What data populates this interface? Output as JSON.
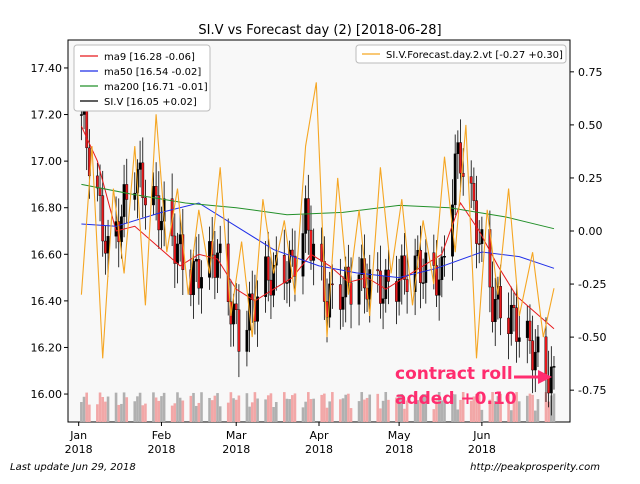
{
  "title": "SI.V vs Forecast day (2)  [2018-06-28]",
  "footer": {
    "left": "Last update Jun 29, 2018",
    "right": "http://peakprosperity.com"
  },
  "annotation": {
    "line1": "contract roll",
    "line2": "added +0.10",
    "color": "#ff2d6f"
  },
  "chart_data": {
    "type": "line",
    "title": "SI.V vs Forecast day (2)  [2018-06-28]",
    "x_range": [
      "2017-12-28",
      "2018-07-04"
    ],
    "x_ticks": [
      {
        "date": "2018-01-01",
        "label": "Jan",
        "year": "2018"
      },
      {
        "date": "2018-02-01",
        "label": "Feb",
        "year": "2018"
      },
      {
        "date": "2018-03-01",
        "label": "Mar",
        "year": "2018"
      },
      {
        "date": "2018-04-01",
        "label": "Apr",
        "year": "2018"
      },
      {
        "date": "2018-05-01",
        "label": "May",
        "year": "2018"
      },
      {
        "date": "2018-06-01",
        "label": "Jun",
        "year": "2018"
      }
    ],
    "y_left": {
      "range": [
        15.88,
        17.52
      ],
      "ticks": [
        "16.00",
        "16.20",
        "16.40",
        "16.60",
        "16.80",
        "17.00",
        "17.20",
        "17.40"
      ]
    },
    "y_right": {
      "range": [
        -0.9,
        0.9
      ],
      "ticks": [
        "-0.75",
        "-0.50",
        "-0.25",
        "0.00",
        "0.25",
        "0.50",
        "0.75"
      ]
    },
    "legend_left": [
      {
        "label": "ma9 [16.28 -0.06]",
        "color": "#e8191c"
      },
      {
        "label": "ma50 [16.54 -0.02]",
        "color": "#1f2ee8"
      },
      {
        "label": "ma200 [16.71 -0.01]",
        "color": "#23902a"
      },
      {
        "label": "SI.V [16.05 +0.02]",
        "color": "#000000"
      }
    ],
    "legend_right": [
      {
        "label": "SI.V.Forecast.day.2.vt [-0.27 +0.30]",
        "color": "#f5a623"
      }
    ],
    "colors": {
      "up": "#000000",
      "down": "#e8191c",
      "vol_up": "#b0b0b0",
      "vol_down": "#f2a7a7",
      "plot_bg": "#f8f8f8"
    },
    "series": [
      {
        "name": "SI.V",
        "kind": "close",
        "points": [
          [
            "2018-01-02",
            17.2
          ],
          [
            "2018-01-12",
            16.6
          ],
          [
            "2018-01-22",
            16.95
          ],
          [
            "2018-02-02",
            16.75
          ],
          [
            "2018-02-12",
            16.5
          ],
          [
            "2018-02-22",
            16.6
          ],
          [
            "2018-03-02",
            16.25
          ],
          [
            "2018-03-12",
            16.5
          ],
          [
            "2018-03-22",
            16.55
          ],
          [
            "2018-03-27",
            16.75
          ],
          [
            "2018-04-04",
            16.4
          ],
          [
            "2018-04-16",
            16.5
          ],
          [
            "2018-04-26",
            16.45
          ],
          [
            "2018-05-07",
            16.55
          ],
          [
            "2018-05-17",
            16.5
          ],
          [
            "2018-05-22",
            17.0
          ],
          [
            "2018-05-25",
            17.0
          ],
          [
            "2018-06-05",
            16.4
          ],
          [
            "2018-06-14",
            16.3
          ],
          [
            "2018-06-28",
            16.05
          ]
        ]
      },
      {
        "name": "ma9",
        "kind": "line",
        "points": [
          [
            "2018-01-02",
            17.15
          ],
          [
            "2018-01-08",
            17.0
          ],
          [
            "2018-01-15",
            16.7
          ],
          [
            "2018-01-22",
            16.72
          ],
          [
            "2018-02-01",
            16.62
          ],
          [
            "2018-02-08",
            16.55
          ],
          [
            "2018-02-15",
            16.6
          ],
          [
            "2018-02-22",
            16.58
          ],
          [
            "2018-03-01",
            16.45
          ],
          [
            "2018-03-08",
            16.4
          ],
          [
            "2018-03-15",
            16.45
          ],
          [
            "2018-03-22",
            16.5
          ],
          [
            "2018-03-29",
            16.6
          ],
          [
            "2018-04-05",
            16.55
          ],
          [
            "2018-04-12",
            16.48
          ],
          [
            "2018-04-19",
            16.5
          ],
          [
            "2018-04-26",
            16.45
          ],
          [
            "2018-05-03",
            16.5
          ],
          [
            "2018-05-10",
            16.55
          ],
          [
            "2018-05-17",
            16.6
          ],
          [
            "2018-05-24",
            16.82
          ],
          [
            "2018-05-31",
            16.7
          ],
          [
            "2018-06-07",
            16.55
          ],
          [
            "2018-06-14",
            16.42
          ],
          [
            "2018-06-21",
            16.35
          ],
          [
            "2018-06-28",
            16.28
          ]
        ]
      },
      {
        "name": "ma50",
        "kind": "line",
        "points": [
          [
            "2018-01-02",
            16.73
          ],
          [
            "2018-01-15",
            16.72
          ],
          [
            "2018-02-01",
            16.78
          ],
          [
            "2018-02-15",
            16.82
          ],
          [
            "2018-03-01",
            16.72
          ],
          [
            "2018-03-15",
            16.62
          ],
          [
            "2018-04-01",
            16.55
          ],
          [
            "2018-04-15",
            16.52
          ],
          [
            "2018-05-01",
            16.5
          ],
          [
            "2018-05-15",
            16.54
          ],
          [
            "2018-06-01",
            16.61
          ],
          [
            "2018-06-15",
            16.59
          ],
          [
            "2018-06-28",
            16.54
          ]
        ]
      },
      {
        "name": "ma200",
        "kind": "line",
        "points": [
          [
            "2018-01-02",
            16.9
          ],
          [
            "2018-01-20",
            16.86
          ],
          [
            "2018-02-10",
            16.82
          ],
          [
            "2018-03-01",
            16.8
          ],
          [
            "2018-03-20",
            16.77
          ],
          [
            "2018-04-10",
            16.78
          ],
          [
            "2018-05-01",
            16.81
          ],
          [
            "2018-05-20",
            16.8
          ],
          [
            "2018-06-10",
            16.76
          ],
          [
            "2018-06-28",
            16.71
          ]
        ]
      },
      {
        "name": "SI.V.Forecast.day.2.vt",
        "kind": "forecast",
        "points": [
          [
            "2018-01-02",
            -0.3
          ],
          [
            "2018-01-06",
            0.4
          ],
          [
            "2018-01-10",
            -0.6
          ],
          [
            "2018-01-14",
            0.2
          ],
          [
            "2018-01-18",
            -0.2
          ],
          [
            "2018-01-22",
            0.4
          ],
          [
            "2018-01-26",
            -0.35
          ],
          [
            "2018-01-30",
            0.55
          ],
          [
            "2018-02-03",
            -0.1
          ],
          [
            "2018-02-07",
            0.2
          ],
          [
            "2018-02-11",
            -0.3
          ],
          [
            "2018-02-15",
            0.1
          ],
          [
            "2018-02-19",
            -0.2
          ],
          [
            "2018-02-23",
            0.3
          ],
          [
            "2018-02-27",
            -0.4
          ],
          [
            "2018-03-03",
            -0.05
          ],
          [
            "2018-03-07",
            -0.5
          ],
          [
            "2018-03-11",
            0.15
          ],
          [
            "2018-03-15",
            -0.2
          ],
          [
            "2018-03-19",
            0.05
          ],
          [
            "2018-03-23",
            -0.3
          ],
          [
            "2018-03-27",
            0.4
          ],
          [
            "2018-03-31",
            0.7
          ],
          [
            "2018-04-04",
            -0.5
          ],
          [
            "2018-04-08",
            0.25
          ],
          [
            "2018-04-12",
            -0.3
          ],
          [
            "2018-04-16",
            0.1
          ],
          [
            "2018-04-20",
            -0.4
          ],
          [
            "2018-04-24",
            0.3
          ],
          [
            "2018-04-28",
            -0.2
          ],
          [
            "2018-05-02",
            0.15
          ],
          [
            "2018-05-06",
            -0.35
          ],
          [
            "2018-05-10",
            0.05
          ],
          [
            "2018-05-14",
            -0.25
          ],
          [
            "2018-05-18",
            0.35
          ],
          [
            "2018-05-22",
            -0.1
          ],
          [
            "2018-05-26",
            0.5
          ],
          [
            "2018-05-30",
            -0.6
          ],
          [
            "2018-06-03",
            0.1
          ],
          [
            "2018-06-07",
            -0.3
          ],
          [
            "2018-06-11",
            0.2
          ],
          [
            "2018-06-15",
            -0.4
          ],
          [
            "2018-06-20",
            -0.1
          ],
          [
            "2018-06-24",
            -0.5
          ],
          [
            "2018-06-28",
            -0.27
          ]
        ]
      }
    ]
  }
}
